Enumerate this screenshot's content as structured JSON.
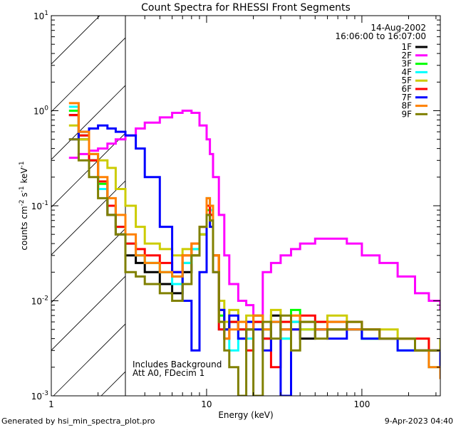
{
  "chart_data": {
    "type": "line",
    "title": "Count Spectra for RHESSI Front Segments",
    "xlabel": "Energy (keV)",
    "ylabel_parts": [
      "counts cm",
      "-2",
      " s",
      "-1",
      " keV",
      "-1"
    ],
    "xscale": "log",
    "yscale": "log",
    "xlim": [
      1,
      320
    ],
    "ylim": [
      0.001,
      10
    ],
    "x_tick_labels": [
      {
        "value": 1,
        "label": "1"
      },
      {
        "value": 10,
        "label": "10"
      },
      {
        "value": 100,
        "label": "100"
      }
    ],
    "y_tick_labels": [
      {
        "exp": -3
      },
      {
        "exp": -2
      },
      {
        "exp": -1
      },
      {
        "exp": 0
      },
      {
        "exp": 1
      }
    ],
    "y_tick_base": "10",
    "shaded_region": [
      1,
      3
    ],
    "date": "14-Aug-2002",
    "time_range": "16:06:00 to 16:07:00",
    "annotations": [
      "Includes Background",
      "Att A0, FDecim 1"
    ],
    "legend_position": "top-right",
    "x": [
      1.3,
      1.5,
      1.75,
      2,
      2.3,
      2.6,
      3,
      3.5,
      4,
      5,
      6,
      7,
      8,
      9,
      10,
      10.5,
      11,
      12,
      13,
      14,
      16,
      18,
      20,
      23,
      26,
      30,
      35,
      40,
      50,
      60,
      80,
      100,
      130,
      170,
      220,
      270,
      320
    ],
    "series": [
      {
        "name": "1F",
        "color": "#000000",
        "values": [
          0.9,
          0.5,
          0.3,
          0.15,
          0.08,
          0.05,
          0.03,
          0.025,
          0.02,
          0.015,
          0.012,
          0.02,
          0.03,
          0.05,
          0.1,
          0.08,
          0.03,
          0.008,
          0.005,
          0.006,
          0.004,
          0.005,
          0.006,
          0.004,
          0.007,
          0.005,
          0.006,
          0.004,
          0.005,
          0.006,
          0.005,
          0.004,
          0.004,
          0.004,
          0.003,
          0.003,
          0.003
        ]
      },
      {
        "name": "2F",
        "color": "#ff00ff",
        "values": [
          0.32,
          0.35,
          0.38,
          0.4,
          0.45,
          0.5,
          0.55,
          0.65,
          0.75,
          0.85,
          0.95,
          1.0,
          0.95,
          0.7,
          0.5,
          0.35,
          0.2,
          0.08,
          0.03,
          0.015,
          0.01,
          0.009,
          0.007,
          0.02,
          0.025,
          0.03,
          0.035,
          0.04,
          0.045,
          0.045,
          0.04,
          0.03,
          0.025,
          0.018,
          0.012,
          0.01,
          0.008
        ]
      },
      {
        "name": "3F",
        "color": "#00ff00",
        "values": [
          1.0,
          0.55,
          0.3,
          0.17,
          0.1,
          0.06,
          0.04,
          0.03,
          0.025,
          0.02,
          0.018,
          0.025,
          0.035,
          0.05,
          0.09,
          0.08,
          0.03,
          0.007,
          0.005,
          0.006,
          0.005,
          0.006,
          0.007,
          0.005,
          0.006,
          0.004,
          0.008,
          0.005,
          0.006,
          0.005,
          0.005,
          0.004,
          0.004,
          0.004,
          0.003,
          0.003,
          0.003
        ]
      },
      {
        "name": "4F",
        "color": "#00ffff",
        "values": [
          1.1,
          0.6,
          0.35,
          0.15,
          0.1,
          0.06,
          0.04,
          0.03,
          0.025,
          0.02,
          0.015,
          0.025,
          0.035,
          0.06,
          0.12,
          0.09,
          0.03,
          0.005,
          0.004,
          0.003,
          0.005,
          0.004,
          0.006,
          0.005,
          0.006,
          0.004,
          0.006,
          0.005,
          0.006,
          0.005,
          0.005,
          0.004,
          0.004,
          0.003,
          0.003,
          0.002,
          0.003
        ]
      },
      {
        "name": "5F",
        "color": "#cccc00",
        "values": [
          0.7,
          0.5,
          0.35,
          0.3,
          0.25,
          0.15,
          0.1,
          0.06,
          0.04,
          0.035,
          0.03,
          0.035,
          0.03,
          0.05,
          0.1,
          0.07,
          0.03,
          0.01,
          0.006,
          0.008,
          0.006,
          0.007,
          0.006,
          0.005,
          0.008,
          0.006,
          0.007,
          0.005,
          0.006,
          0.007,
          0.006,
          0.005,
          0.005,
          0.004,
          0.004,
          0.003,
          0.004
        ]
      },
      {
        "name": "6F",
        "color": "#ff0000",
        "values": [
          0.9,
          0.55,
          0.3,
          0.18,
          0.1,
          0.06,
          0.04,
          0.035,
          0.03,
          0.025,
          0.02,
          0.03,
          0.04,
          0.06,
          0.1,
          0.08,
          0.03,
          0.005,
          0.004,
          0.006,
          0.005,
          0.003,
          0.006,
          0.004,
          0.002,
          0.006,
          0.005,
          0.007,
          0.006,
          0.005,
          0.006,
          0.005,
          0.004,
          0.004,
          0.004,
          0.003,
          0.003
        ]
      },
      {
        "name": "7F",
        "color": "#0000ff",
        "values": [
          0.5,
          0.6,
          0.65,
          0.7,
          0.65,
          0.6,
          0.55,
          0.4,
          0.2,
          0.06,
          0.02,
          0.01,
          0.003,
          0.02,
          0.08,
          0.06,
          0.02,
          0.008,
          0.005,
          0.007,
          0.004,
          0.006,
          0.005,
          0.003,
          0.006,
          0.001,
          0.005,
          0.006,
          0.005,
          0.004,
          0.005,
          0.004,
          0.004,
          0.003,
          0.003,
          0.003,
          0.002
        ]
      },
      {
        "name": "8F",
        "color": "#ff8000",
        "values": [
          1.2,
          0.6,
          0.35,
          0.2,
          0.12,
          0.08,
          0.05,
          0.03,
          0.025,
          0.02,
          0.018,
          0.03,
          0.04,
          0.06,
          0.12,
          0.1,
          0.03,
          0.006,
          0.004,
          0.005,
          0.006,
          0.005,
          0.007,
          0.005,
          0.006,
          0.005,
          0.007,
          0.006,
          0.005,
          0.006,
          0.005,
          0.005,
          0.004,
          0.004,
          0.003,
          0.002,
          0.0015
        ]
      },
      {
        "name": "9F",
        "color": "#808000",
        "values": [
          0.5,
          0.3,
          0.2,
          0.12,
          0.08,
          0.05,
          0.02,
          0.018,
          0.015,
          0.012,
          0.01,
          0.015,
          0.03,
          0.06,
          0.08,
          0.07,
          0.02,
          0.006,
          0.003,
          0.002,
          0.0009,
          0.005,
          0.001,
          0.006,
          0.004,
          0.007,
          0.003,
          0.006,
          0.004,
          0.005,
          0.006,
          0.005,
          0.004,
          0.004,
          0.003,
          0.003,
          0.003
        ]
      }
    ]
  },
  "footer": {
    "generated_by": "Generated by hsi_min_spectra_plot.pro",
    "timestamp": "9-Apr-2023 04:40"
  }
}
